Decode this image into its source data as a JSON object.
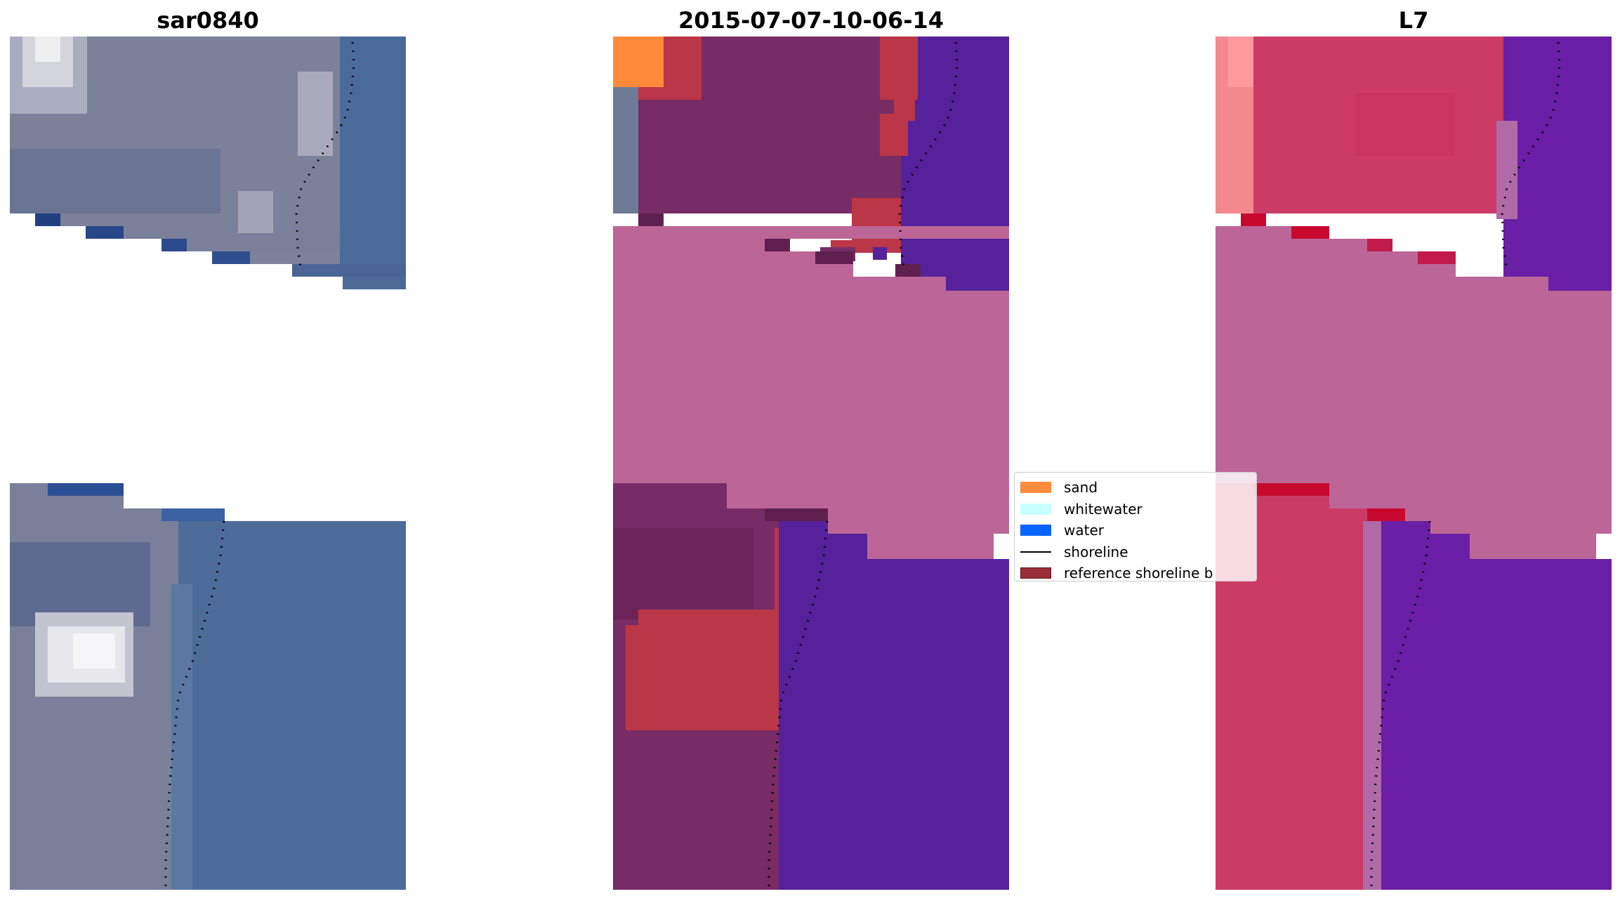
{
  "panels": [
    {
      "title": "sar0840"
    },
    {
      "title": "2015-07-07-10-06-14"
    },
    {
      "title": "L7"
    }
  ],
  "legend": {
    "items": [
      {
        "label": "sand",
        "color": "#ff8c3c",
        "kind": "patch"
      },
      {
        "label": "whitewater",
        "color": "#c8ffff",
        "kind": "patch"
      },
      {
        "label": "water",
        "color": "#0a64ff",
        "kind": "patch"
      },
      {
        "label": "shoreline",
        "color": "#000000",
        "kind": "line"
      },
      {
        "label": "reference shoreline b",
        "color": "#9a2e37",
        "kind": "patch"
      }
    ]
  },
  "colors": {
    "no_data_band": "#bb6696",
    "rgb_land": "#7a7f98",
    "rgb_water": "#4a6a98",
    "class_land": "#772c66",
    "class_water": "#55229b",
    "class_sand_red": "#b83648",
    "ndwi_land": "#cc3b66",
    "ndwi_water": "#6a1fa6"
  }
}
